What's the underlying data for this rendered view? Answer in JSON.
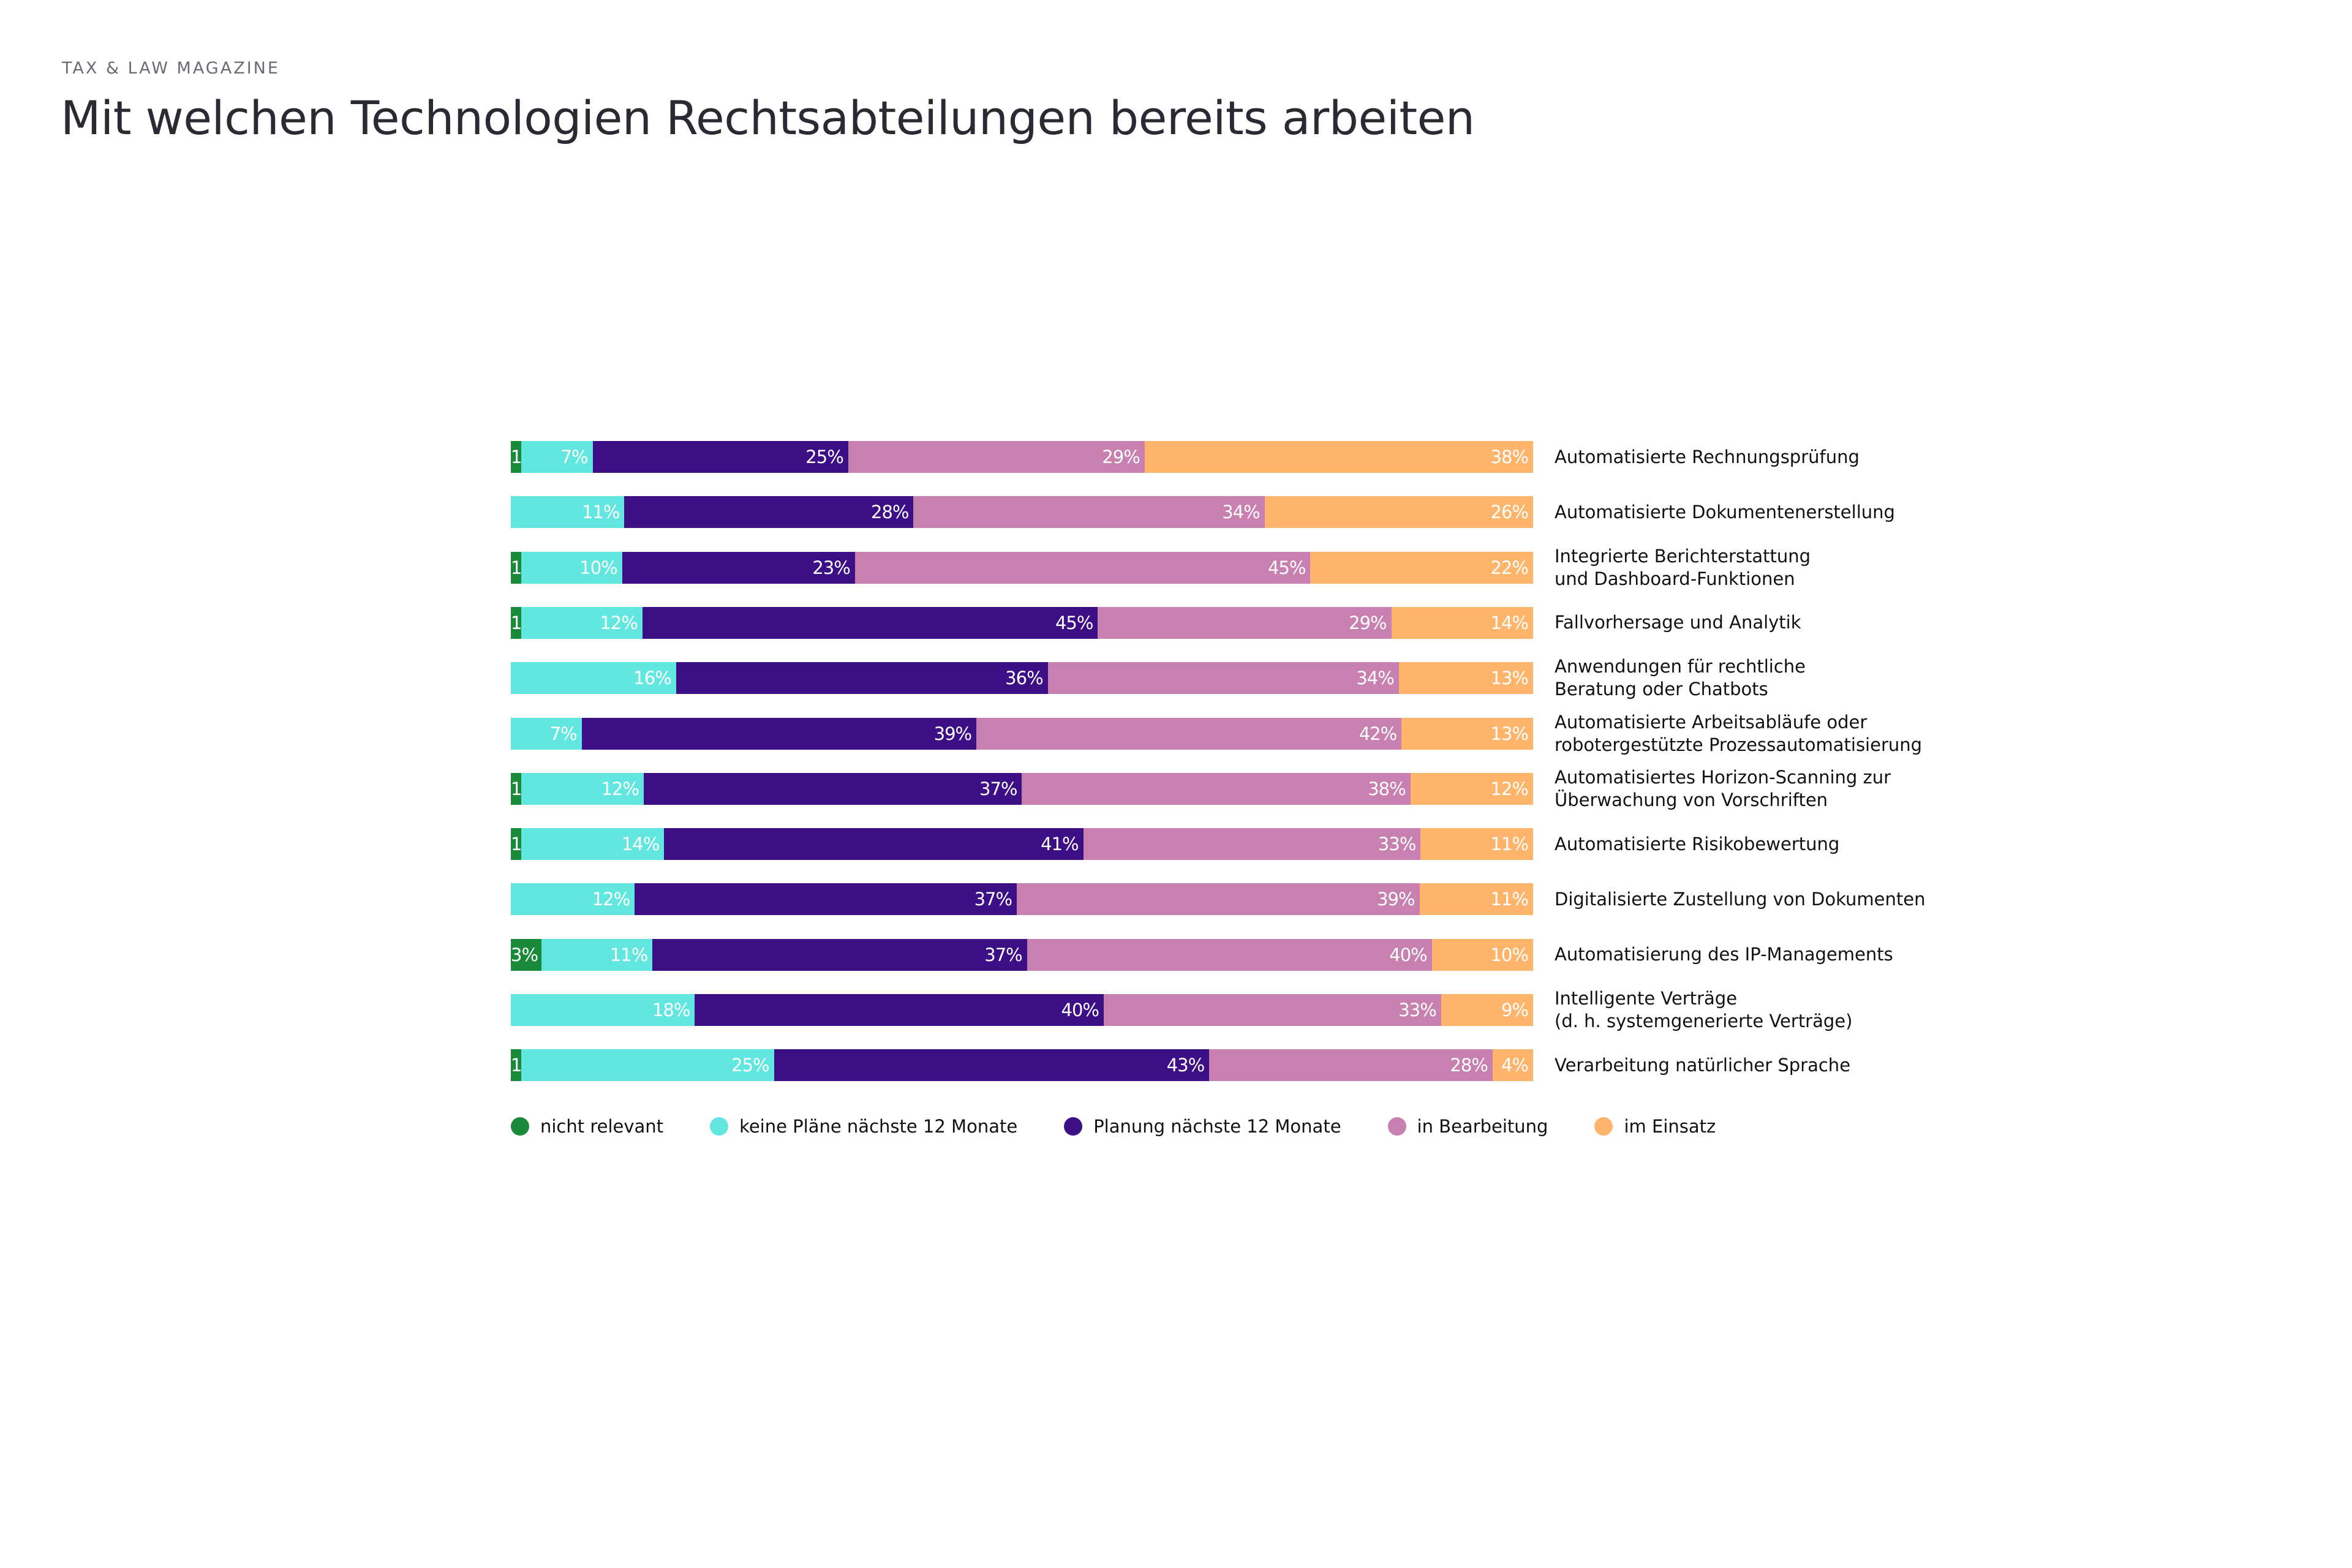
{
  "header": {
    "kicker": "TAX & LAW MAGAZINE",
    "title": "Mit welchen Technologien Rechtsabteilungen bereits arbeiten"
  },
  "chart_data": {
    "type": "bar",
    "orientation": "horizontal",
    "stacked": true,
    "unit": "%",
    "categories": [
      "Automatisierte Rechnungsprüfung",
      "Automatisierte Dokumentenerstellung",
      "Integrierte Berichterstattung\nund Dashboard-Funktionen",
      "Fallvorhersage und Analytik",
      "Anwendungen für rechtliche\nBeratung oder Chatbots",
      "Automatisierte Arbeitsabläufe oder\nrobotergestützte Prozessautomatisierung",
      "Automatisiertes Horizon-Scanning zur\nÜberwachung von Vorschriften",
      "Automatisierte Risikobewertung",
      "Digitalisierte Zustellung von Dokumenten",
      "Automatisierung des IP-Managements",
      "Intelligente Verträge\n(d. h. systemgenerierte Verträge)",
      "Verarbeitung natürlicher Sprache"
    ],
    "series": [
      {
        "name": "nicht relevant",
        "color": "#1a8a3a",
        "values": [
          1,
          0,
          1,
          1,
          0,
          0,
          1,
          1,
          0,
          3,
          0,
          1
        ]
      },
      {
        "name": "keine Pläne nächste 12 Monate",
        "color": "#62e6e0",
        "values": [
          7,
          11,
          10,
          12,
          16,
          7,
          12,
          14,
          12,
          11,
          18,
          25
        ]
      },
      {
        "name": "Planung nächste 12 Monate",
        "color": "#3d0f87",
        "values": [
          25,
          28,
          23,
          45,
          36,
          39,
          37,
          41,
          37,
          37,
          40,
          43
        ]
      },
      {
        "name": "in Bearbeitung",
        "color": "#c880b0",
        "values": [
          29,
          34,
          45,
          29,
          34,
          42,
          38,
          33,
          39,
          40,
          33,
          28
        ]
      },
      {
        "name": "im Einsatz",
        "color": "#ffb46c",
        "values": [
          38,
          26,
          22,
          14,
          13,
          13,
          12,
          11,
          11,
          10,
          9,
          4
        ]
      }
    ],
    "legend_position": "bottom-left",
    "grid": false,
    "data_labels": true
  }
}
